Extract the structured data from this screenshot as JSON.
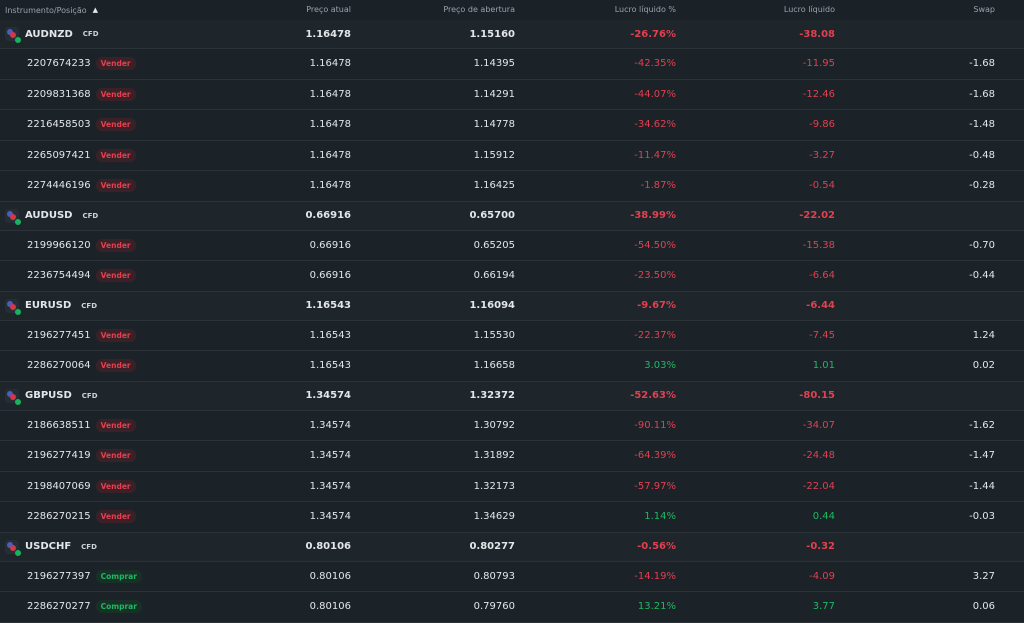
{
  "columns": {
    "instrument": "Instrumento/Posição",
    "sort_icon": "triangle-up",
    "current": "Preço atual",
    "open": "Preço de abertura",
    "pct": "Lucro líquido %",
    "profit": "Lucro líquido",
    "swap": "Swap"
  },
  "colors": {
    "loss": "#e2404f",
    "profit": "#1fb863"
  },
  "groups": [
    {
      "symbol": "AUDNZD",
      "type": "CFD",
      "current": "1.16478",
      "open": "1.15160",
      "pct": "-26.76%",
      "profit": "-38.08",
      "positions": [
        {
          "id": "2207674233",
          "side": "Vender",
          "current": "1.16478",
          "open": "1.14395",
          "pct": "-42.35%",
          "profit": "-11.95",
          "swap": "-1.68"
        },
        {
          "id": "2209831368",
          "side": "Vender",
          "current": "1.16478",
          "open": "1.14291",
          "pct": "-44.07%",
          "profit": "-12.46",
          "swap": "-1.68"
        },
        {
          "id": "2216458503",
          "side": "Vender",
          "current": "1.16478",
          "open": "1.14778",
          "pct": "-34.62%",
          "profit": "-9.86",
          "swap": "-1.48"
        },
        {
          "id": "2265097421",
          "side": "Vender",
          "current": "1.16478",
          "open": "1.15912",
          "pct": "-11.47%",
          "profit": "-3.27",
          "swap": "-0.48"
        },
        {
          "id": "2274446196",
          "side": "Vender",
          "current": "1.16478",
          "open": "1.16425",
          "pct": "-1.87%",
          "profit": "-0.54",
          "swap": "-0.28"
        }
      ]
    },
    {
      "symbol": "AUDUSD",
      "type": "CFD",
      "current": "0.66916",
      "open": "0.65700",
      "pct": "-38.99%",
      "profit": "-22.02",
      "positions": [
        {
          "id": "2199966120",
          "side": "Vender",
          "current": "0.66916",
          "open": "0.65205",
          "pct": "-54.50%",
          "profit": "-15.38",
          "swap": "-0.70"
        },
        {
          "id": "2236754494",
          "side": "Vender",
          "current": "0.66916",
          "open": "0.66194",
          "pct": "-23.50%",
          "profit": "-6.64",
          "swap": "-0.44"
        }
      ]
    },
    {
      "symbol": "EURUSD",
      "type": "CFD",
      "current": "1.16543",
      "open": "1.16094",
      "pct": "-9.67%",
      "profit": "-6.44",
      "positions": [
        {
          "id": "2196277451",
          "side": "Vender",
          "current": "1.16543",
          "open": "1.15530",
          "pct": "-22.37%",
          "profit": "-7.45",
          "swap": "1.24"
        },
        {
          "id": "2286270064",
          "side": "Vender",
          "current": "1.16543",
          "open": "1.16658",
          "pct": "3.03%",
          "profit": "1.01",
          "swap": "0.02"
        }
      ]
    },
    {
      "symbol": "GBPUSD",
      "type": "CFD",
      "current": "1.34574",
      "open": "1.32372",
      "pct": "-52.63%",
      "profit": "-80.15",
      "positions": [
        {
          "id": "2186638511",
          "side": "Vender",
          "current": "1.34574",
          "open": "1.30792",
          "pct": "-90.11%",
          "profit": "-34.07",
          "swap": "-1.62"
        },
        {
          "id": "2196277419",
          "side": "Vender",
          "current": "1.34574",
          "open": "1.31892",
          "pct": "-64.39%",
          "profit": "-24.48",
          "swap": "-1.47"
        },
        {
          "id": "2198407069",
          "side": "Vender",
          "current": "1.34574",
          "open": "1.32173",
          "pct": "-57.97%",
          "profit": "-22.04",
          "swap": "-1.44"
        },
        {
          "id": "2286270215",
          "side": "Vender",
          "current": "1.34574",
          "open": "1.34629",
          "pct": "1.14%",
          "profit": "0.44",
          "swap": "-0.03"
        }
      ]
    },
    {
      "symbol": "USDCHF",
      "type": "CFD",
      "current": "0.80106",
      "open": "0.80277",
      "pct": "-0.56%",
      "profit": "-0.32",
      "positions": [
        {
          "id": "2196277397",
          "side": "Comprar",
          "current": "0.80106",
          "open": "0.80793",
          "pct": "-14.19%",
          "profit": "-4.09",
          "swap": "3.27"
        },
        {
          "id": "2286270277",
          "side": "Comprar",
          "current": "0.80106",
          "open": "0.79760",
          "pct": "13.21%",
          "profit": "3.77",
          "swap": "0.06"
        }
      ]
    }
  ]
}
